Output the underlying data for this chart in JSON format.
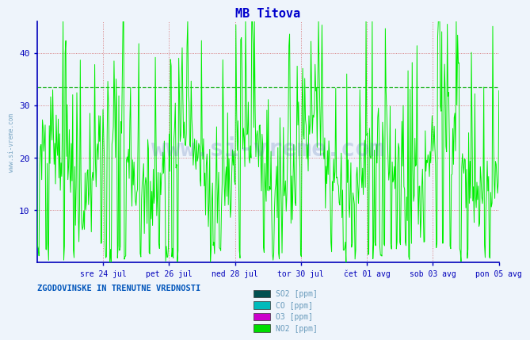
{
  "title": "MB Titova",
  "title_color": "#0000cc",
  "background_color": "#eef4fb",
  "plot_bg_color": "#eef4fb",
  "ylim": [
    0,
    46
  ],
  "yticks": [
    10,
    20,
    30,
    40
  ],
  "x_labels": [
    "sre 24 jul",
    "pet 26 jul",
    "ned 28 jul",
    "tor 30 jul",
    "čet 01 avg",
    "sob 03 avg",
    "pon 05 avg"
  ],
  "legend_labels": [
    "SO2 [ppm]",
    "CO [ppm]",
    "O3 [ppm]",
    "NO2 [ppm]"
  ],
  "legend_colors": [
    "#005050",
    "#00bbbb",
    "#cc00cc",
    "#00dd00"
  ],
  "bottom_text": "ZGODOVINSKE IN TRENUTNE VREDNOSTI",
  "watermark": "www.si-vreme.com",
  "hline_value": 33.5,
  "hline_color": "#00aa00",
  "grid_color": "#cc4444",
  "axis_color": "#0000bb",
  "tick_color": "#4488bb",
  "label_color": "#4488bb",
  "legend_text_color": "#6699bb",
  "watermark_color": "#4466aa",
  "left_watermark_color": "#6699bb",
  "n_points": 672
}
